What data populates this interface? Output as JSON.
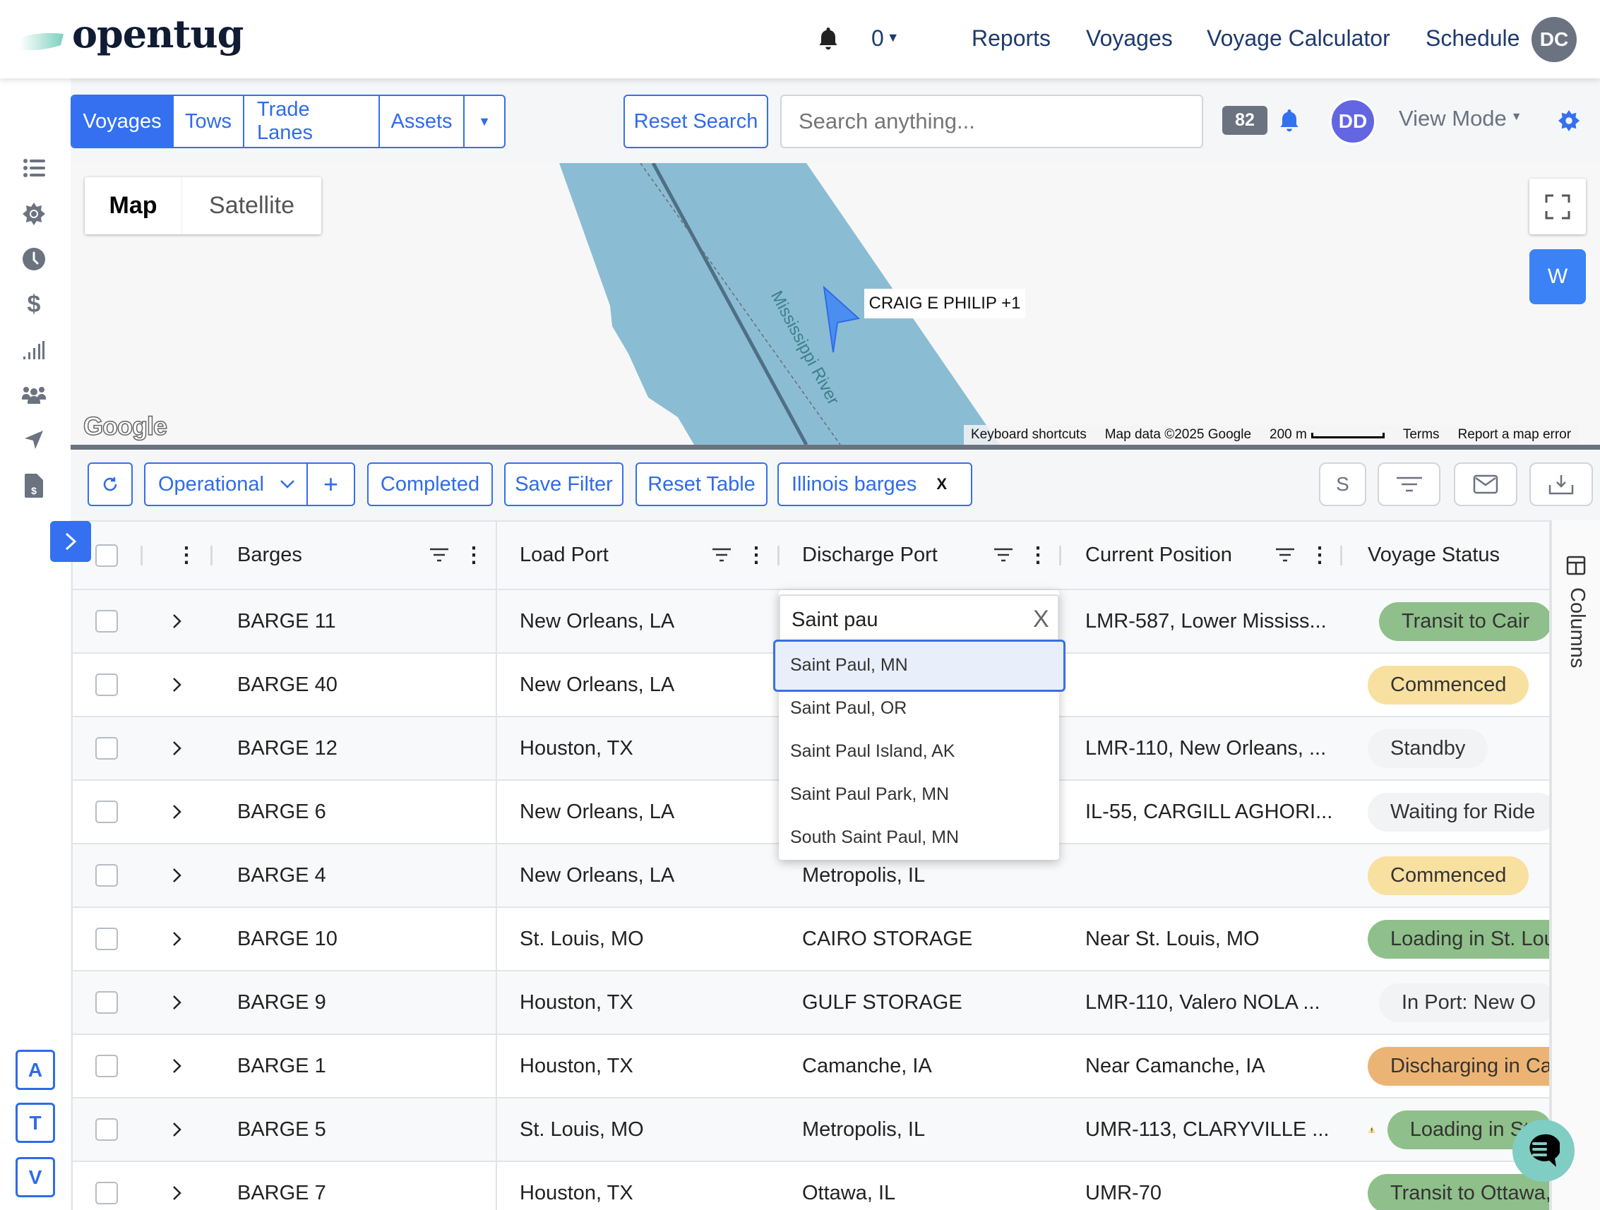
{
  "header": {
    "logo": "opentug",
    "notif_count": "0",
    "nav": [
      "Reports",
      "Voyages",
      "Voyage Calculator",
      "Schedule"
    ],
    "user_initials": "DC"
  },
  "toolbar": {
    "tabs": [
      "Voyages",
      "Tows",
      "Trade Lanes",
      "Assets"
    ],
    "reset_search": "Reset Search",
    "search_placeholder": "Search anything...",
    "badge": "82",
    "avatar": "DD",
    "view_mode": "View Mode"
  },
  "map": {
    "type_map": "Map",
    "type_satellite": "Satellite",
    "vessel_label": "CRAIG E PHILIP +1",
    "river_label": "Mississippi River",
    "w_button": "W",
    "google": "Google",
    "attribution": [
      "Keyboard shortcuts",
      "Map data ©2025 Google",
      "200 m",
      "Terms",
      "Report a map error"
    ]
  },
  "filters": {
    "operational": "Operational",
    "completed": "Completed",
    "save_filter": "Save Filter",
    "reset_table": "Reset Table",
    "chip": "Illinois barges",
    "chip_close": "X",
    "money_icon": "S"
  },
  "table": {
    "columns": [
      "Barges",
      "Load Port",
      "Discharge Port",
      "Current Position",
      "Voyage Status"
    ],
    "rows": [
      {
        "barge": "BARGE 11",
        "load": "New Orleans, LA",
        "discharge": "",
        "position": "LMR-587, Lower Mississ...",
        "warn": true,
        "status": "Transit to Cair",
        "kind": "green"
      },
      {
        "barge": "BARGE 40",
        "load": "New Orleans, LA",
        "discharge": "",
        "position": "",
        "warn": false,
        "status": "Commenced",
        "kind": "yellow"
      },
      {
        "barge": "BARGE 12",
        "load": "Houston, TX",
        "discharge": "",
        "position": "LMR-110, New Orleans, ...",
        "warn": false,
        "status": "Standby",
        "kind": "gray"
      },
      {
        "barge": "BARGE 6",
        "load": "New Orleans, LA",
        "discharge": "",
        "position": "IL-55, CARGILL AGHORI...",
        "warn": false,
        "status": "Waiting for Ride",
        "kind": "gray"
      },
      {
        "barge": "BARGE 4",
        "load": "New Orleans, LA",
        "discharge": "Metropolis, IL",
        "position": "",
        "warn": false,
        "status": "Commenced",
        "kind": "yellow"
      },
      {
        "barge": "BARGE 10",
        "load": "St. Louis, MO",
        "discharge": "CAIRO STORAGE",
        "position": "Near St. Louis, MO",
        "warn": false,
        "status": "Loading in St. Lou",
        "kind": "green"
      },
      {
        "barge": "BARGE 9",
        "load": "Houston, TX",
        "discharge": "GULF STORAGE",
        "position": "LMR-110, Valero NOLA ...",
        "warn": true,
        "status": "In Port: New O",
        "kind": "gray"
      },
      {
        "barge": "BARGE 1",
        "load": "Houston, TX",
        "discharge": "Camanche, IA",
        "position": "Near Camanche, IA",
        "warn": false,
        "status": "Discharging in Car",
        "kind": "orange"
      },
      {
        "barge": "BARGE 5",
        "load": "St. Louis, MO",
        "discharge": "Metropolis, IL",
        "position": "UMR-113, CLARYVILLE ...",
        "warn": true,
        "status": "Loading in St",
        "kind": "green"
      },
      {
        "barge": "BARGE 7",
        "load": "Houston, TX",
        "discharge": "Ottawa, IL",
        "position": "UMR-70",
        "warn": false,
        "status": "Transit to Ottawa,",
        "kind": "green"
      }
    ],
    "columns_panel": "Columns"
  },
  "dropdown": {
    "value": "Saint pau",
    "clear": "X",
    "options": [
      "Saint Paul, MN",
      "Saint Paul, OR",
      "Saint Paul Island, AK",
      "Saint Paul Park, MN",
      "South Saint Paul, MN"
    ]
  },
  "quick": [
    "A",
    "T",
    "V"
  ],
  "colors": {
    "accent": "#3470f0",
    "green": "#8fbf8a",
    "yellow": "#f8e0a0",
    "gray": "#f2f3f4",
    "orange": "#ecb474",
    "teal": "#7fcdc3"
  }
}
